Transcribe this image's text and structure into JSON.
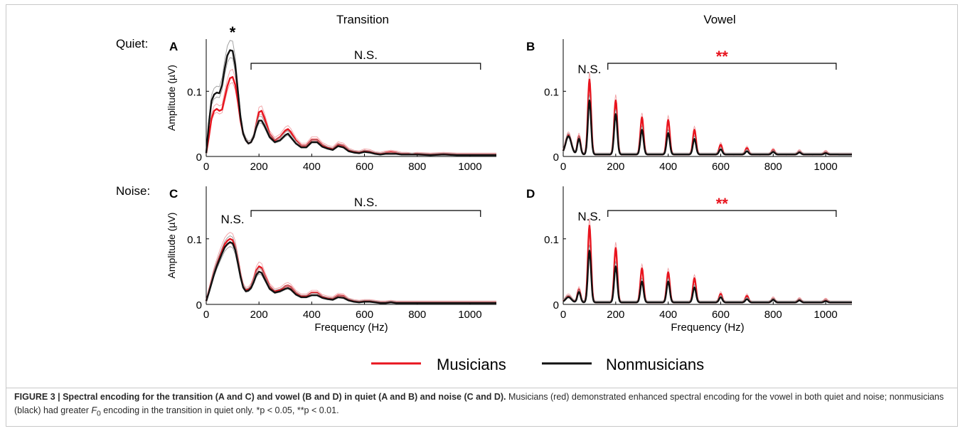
{
  "column_titles": [
    "Transition",
    "Vowel"
  ],
  "row_labels": [
    "Quiet:",
    "Noise:"
  ],
  "axis": {
    "ylabel": "Amplitude (µV)",
    "xlabel": "Frequency (Hz)",
    "xticks": [
      0,
      200,
      400,
      600,
      800,
      1000
    ],
    "yticks": [
      0,
      0.1
    ],
    "ytick_labels": [
      "0",
      "0.1"
    ],
    "xlim": [
      0,
      1100
    ],
    "ylim": [
      0,
      0.18
    ]
  },
  "legend": {
    "musicians": "Musicians",
    "nonmusicians": "Nonmusicians",
    "musicians_color": "#e8141e",
    "nonmusicians_color": "#111111",
    "placement": "bottom-center"
  },
  "chart_data": [
    {
      "type": "line",
      "panel": "A",
      "condition": "Transition",
      "noise": "Quiet",
      "xlim": [
        0,
        1100
      ],
      "ylim": [
        0,
        0.18
      ],
      "series": [
        {
          "name": "Musicians",
          "color": "#e8141e",
          "x": [
            0,
            10,
            20,
            30,
            40,
            50,
            60,
            70,
            80,
            90,
            100,
            110,
            120,
            130,
            140,
            150,
            160,
            170,
            180,
            190,
            200,
            210,
            220,
            240,
            260,
            280,
            300,
            310,
            320,
            340,
            360,
            380,
            400,
            420,
            440,
            460,
            480,
            500,
            520,
            540,
            560,
            580,
            600,
            620,
            640,
            660,
            680,
            700,
            720,
            740,
            760,
            780,
            800,
            850,
            900,
            950,
            1000,
            1050,
            1100
          ],
          "y": [
            0.005,
            0.03,
            0.058,
            0.07,
            0.073,
            0.07,
            0.072,
            0.09,
            0.108,
            0.12,
            0.122,
            0.11,
            0.085,
            0.055,
            0.035,
            0.025,
            0.02,
            0.022,
            0.03,
            0.05,
            0.068,
            0.07,
            0.06,
            0.035,
            0.025,
            0.03,
            0.04,
            0.042,
            0.038,
            0.025,
            0.017,
            0.017,
            0.026,
            0.026,
            0.018,
            0.014,
            0.012,
            0.019,
            0.017,
            0.01,
            0.007,
            0.006,
            0.009,
            0.008,
            0.005,
            0.004,
            0.006,
            0.007,
            0.006,
            0.004,
            0.004,
            0.003,
            0.004,
            0.003,
            0.004,
            0.003,
            0.003,
            0.003,
            0.003
          ]
        },
        {
          "name": "Nonmusicians",
          "color": "#111111",
          "x": [
            0,
            10,
            20,
            30,
            40,
            50,
            60,
            70,
            80,
            90,
            100,
            110,
            120,
            130,
            140,
            150,
            160,
            170,
            180,
            190,
            200,
            210,
            220,
            240,
            260,
            280,
            300,
            310,
            320,
            340,
            360,
            380,
            400,
            420,
            440,
            460,
            480,
            500,
            520,
            540,
            560,
            580,
            600,
            620,
            640,
            660,
            680,
            700,
            720,
            740,
            760,
            780,
            800,
            850,
            900,
            950,
            1000,
            1050,
            1100
          ],
          "y": [
            0.005,
            0.05,
            0.085,
            0.095,
            0.098,
            0.097,
            0.11,
            0.135,
            0.155,
            0.163,
            0.162,
            0.14,
            0.1,
            0.06,
            0.035,
            0.025,
            0.02,
            0.022,
            0.03,
            0.045,
            0.055,
            0.055,
            0.048,
            0.03,
            0.022,
            0.025,
            0.033,
            0.035,
            0.03,
            0.02,
            0.014,
            0.014,
            0.022,
            0.022,
            0.015,
            0.012,
            0.01,
            0.016,
            0.014,
            0.008,
            0.006,
            0.005,
            0.007,
            0.006,
            0.004,
            0.003,
            0.004,
            0.004,
            0.004,
            0.003,
            0.003,
            0.003,
            0.003,
            0.002,
            0.003,
            0.002,
            0.002,
            0.002,
            0.002
          ]
        }
      ],
      "annotations": [
        {
          "text": "*",
          "color": "#000000",
          "x": 100
        },
        {
          "text": "N.S.",
          "color": "#000000",
          "bracket": [
            170,
            1040
          ]
        }
      ]
    },
    {
      "type": "line",
      "panel": "B",
      "condition": "Vowel",
      "noise": "Quiet",
      "xlim": [
        0,
        1100
      ],
      "ylim": [
        0,
        0.18
      ],
      "series": [
        {
          "name": "Musicians",
          "color": "#e8141e",
          "peaks": [
            [
              20,
              0.03
            ],
            [
              60,
              0.028
            ],
            [
              100,
              0.115
            ],
            [
              200,
              0.083
            ],
            [
              300,
              0.057
            ],
            [
              400,
              0.053
            ],
            [
              500,
              0.038
            ],
            [
              600,
              0.015
            ],
            [
              700,
              0.01
            ],
            [
              800,
              0.007
            ],
            [
              900,
              0.005
            ],
            [
              1000,
              0.004
            ]
          ]
        },
        {
          "name": "Nonmusicians",
          "color": "#111111",
          "peaks": [
            [
              20,
              0.028
            ],
            [
              60,
              0.024
            ],
            [
              100,
              0.083
            ],
            [
              200,
              0.062
            ],
            [
              300,
              0.038
            ],
            [
              400,
              0.033
            ],
            [
              500,
              0.024
            ],
            [
              600,
              0.008
            ],
            [
              700,
              0.005
            ],
            [
              800,
              0.004
            ],
            [
              900,
              0.003
            ],
            [
              1000,
              0.002
            ]
          ]
        }
      ],
      "annotations": [
        {
          "text": "N.S.",
          "color": "#000000",
          "x": 100
        },
        {
          "text": "**",
          "color": "#e8141e",
          "bracket": [
            170,
            1040
          ]
        }
      ]
    },
    {
      "type": "line",
      "panel": "C",
      "condition": "Transition",
      "noise": "Noise",
      "xlim": [
        0,
        1100
      ],
      "ylim": [
        0,
        0.18
      ],
      "series": [
        {
          "name": "Musicians",
          "color": "#e8141e",
          "x": [
            0,
            10,
            20,
            30,
            40,
            50,
            60,
            70,
            80,
            90,
            100,
            110,
            120,
            130,
            140,
            150,
            160,
            170,
            180,
            190,
            200,
            210,
            220,
            240,
            260,
            280,
            300,
            310,
            320,
            340,
            360,
            380,
            400,
            420,
            440,
            460,
            480,
            500,
            520,
            540,
            560,
            580,
            600,
            620,
            640,
            660,
            680,
            700,
            720,
            740,
            760,
            780,
            800,
            850,
            900,
            950,
            1000,
            1050,
            1100
          ],
          "y": [
            0.005,
            0.02,
            0.035,
            0.05,
            0.062,
            0.073,
            0.083,
            0.092,
            0.097,
            0.1,
            0.098,
            0.088,
            0.068,
            0.045,
            0.028,
            0.022,
            0.023,
            0.028,
            0.038,
            0.052,
            0.058,
            0.056,
            0.046,
            0.028,
            0.02,
            0.022,
            0.028,
            0.029,
            0.027,
            0.018,
            0.013,
            0.013,
            0.018,
            0.018,
            0.012,
            0.01,
            0.009,
            0.014,
            0.013,
            0.007,
            0.005,
            0.004,
            0.005,
            0.005,
            0.004,
            0.003,
            0.003,
            0.004,
            0.003,
            0.003,
            0.003,
            0.003,
            0.003,
            0.003,
            0.003,
            0.003,
            0.003,
            0.003,
            0.003
          ]
        },
        {
          "name": "Nonmusicians",
          "color": "#111111",
          "x": [
            0,
            10,
            20,
            30,
            40,
            50,
            60,
            70,
            80,
            90,
            100,
            110,
            120,
            130,
            140,
            150,
            160,
            170,
            180,
            190,
            200,
            210,
            220,
            240,
            260,
            280,
            300,
            310,
            320,
            340,
            360,
            380,
            400,
            420,
            440,
            460,
            480,
            500,
            520,
            540,
            560,
            580,
            600,
            620,
            640,
            660,
            680,
            700,
            720,
            740,
            760,
            780,
            800,
            850,
            900,
            950,
            1000,
            1050,
            1100
          ],
          "y": [
            0.005,
            0.018,
            0.032,
            0.046,
            0.058,
            0.068,
            0.078,
            0.087,
            0.092,
            0.095,
            0.093,
            0.083,
            0.063,
            0.042,
            0.026,
            0.02,
            0.021,
            0.025,
            0.034,
            0.045,
            0.05,
            0.048,
            0.04,
            0.024,
            0.018,
            0.02,
            0.024,
            0.025,
            0.023,
            0.015,
            0.011,
            0.011,
            0.014,
            0.014,
            0.01,
            0.008,
            0.007,
            0.011,
            0.01,
            0.006,
            0.004,
            0.003,
            0.004,
            0.004,
            0.003,
            0.002,
            0.002,
            0.003,
            0.002,
            0.002,
            0.002,
            0.002,
            0.002,
            0.002,
            0.002,
            0.002,
            0.002,
            0.002,
            0.002
          ]
        }
      ],
      "annotations": [
        {
          "text": "N.S.",
          "color": "#000000",
          "x": 100
        },
        {
          "text": "N.S.",
          "color": "#000000",
          "bracket": [
            170,
            1040
          ]
        }
      ]
    },
    {
      "type": "line",
      "panel": "D",
      "condition": "Vowel",
      "noise": "Noise",
      "xlim": [
        0,
        1100
      ],
      "ylim": [
        0,
        0.18
      ],
      "series": [
        {
          "name": "Musicians",
          "color": "#e8141e",
          "peaks": [
            [
              20,
              0.01
            ],
            [
              60,
              0.02
            ],
            [
              100,
              0.117
            ],
            [
              200,
              0.083
            ],
            [
              300,
              0.052
            ],
            [
              400,
              0.046
            ],
            [
              500,
              0.037
            ],
            [
              600,
              0.013
            ],
            [
              700,
              0.01
            ],
            [
              800,
              0.006
            ],
            [
              900,
              0.005
            ],
            [
              1000,
              0.004
            ]
          ]
        },
        {
          "name": "Nonmusicians",
          "color": "#111111",
          "peaks": [
            [
              20,
              0.008
            ],
            [
              60,
              0.016
            ],
            [
              100,
              0.079
            ],
            [
              200,
              0.055
            ],
            [
              300,
              0.032
            ],
            [
              400,
              0.032
            ],
            [
              500,
              0.023
            ],
            [
              600,
              0.008
            ],
            [
              700,
              0.005
            ],
            [
              800,
              0.004
            ],
            [
              900,
              0.003
            ],
            [
              1000,
              0.002
            ]
          ]
        }
      ],
      "annotations": [
        {
          "text": "N.S.",
          "color": "#000000",
          "x": 100
        },
        {
          "text": "**",
          "color": "#e8141e",
          "bracket": [
            170,
            1040
          ]
        }
      ]
    }
  ],
  "caption": {
    "figure_label": "FIGURE 3 | Spectral encoding for the transition (A and C) and vowel (B and D) in quiet (A and B) and noise (C and D).",
    "text1": " Musicians (red) demonstrated enhanced spectral encoding for the vowel in both quiet and noise; nonmusicians (black) had greater ",
    "f0_main": "F",
    "f0_sub": "0",
    "text2": " encoding in the transition in quiet only. *p < 0.05, **p < 0.01."
  }
}
